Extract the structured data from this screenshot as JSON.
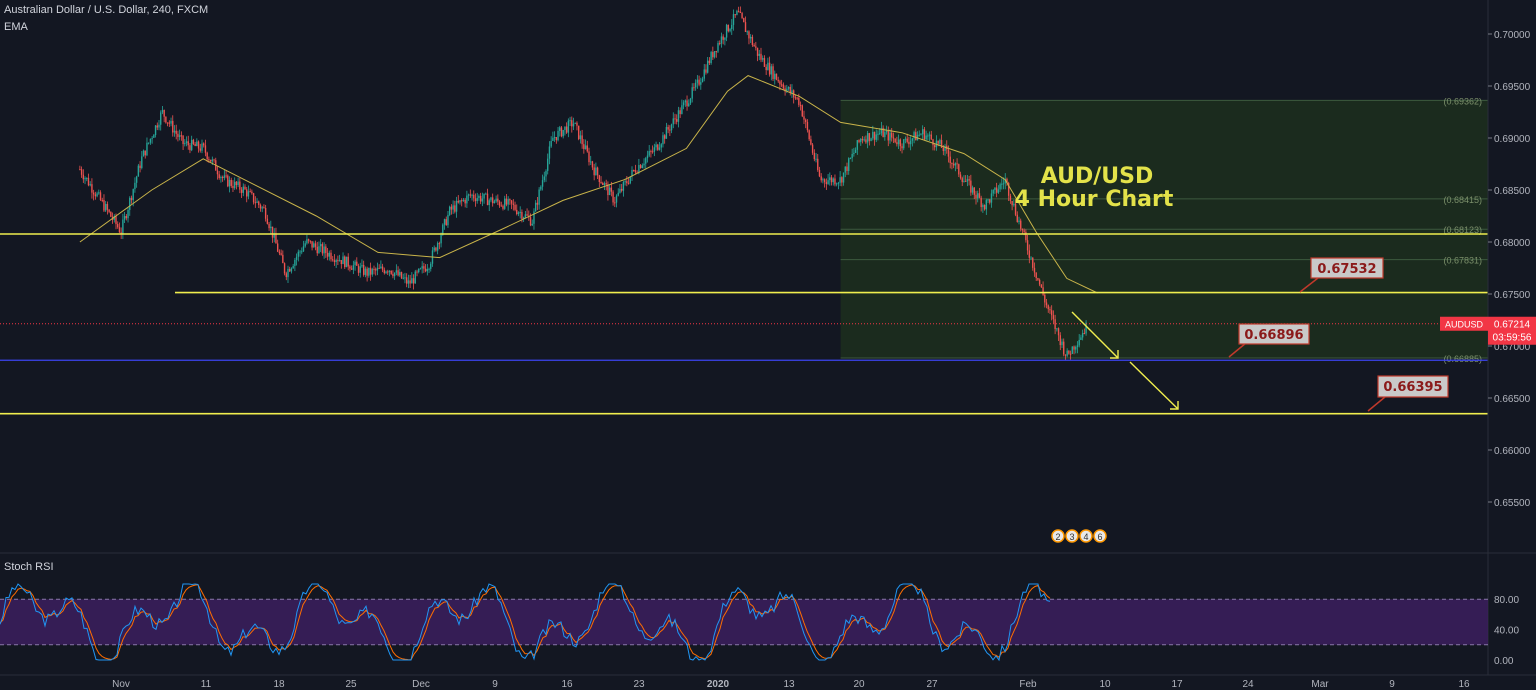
{
  "header": {
    "symbol_line": "Australian Dollar / U.S. Dollar, 240, FXCM",
    "indicator": "EMA"
  },
  "chart_data": {
    "type": "candlestick",
    "title": "AUD/USD",
    "subtitle": "4 Hour Chart",
    "ylim": [
      0.6455,
      0.7028
    ],
    "y_ticks": [
      0.7,
      0.695,
      0.69,
      0.685,
      0.68,
      0.675,
      0.67,
      0.665,
      0.66,
      0.655
    ],
    "y_tick_labels": [
      "0.70000",
      "0.69500",
      "0.69000",
      "0.68500",
      "0.68000",
      "0.67500",
      "0.67000",
      "0.66500",
      "0.66000",
      "0.65500"
    ],
    "x_tick_labels": [
      "Nov",
      "11",
      "18",
      "25",
      "Dec",
      "9",
      "16",
      "23",
      "2020",
      "13",
      "20",
      "27",
      "Feb",
      "10",
      "17",
      "24",
      "Mar",
      "9",
      "16"
    ],
    "close_path": [
      [
        "Oct 28",
        0.687
      ],
      [
        "Oct 30",
        0.684
      ],
      [
        "Nov 1",
        0.681
      ],
      [
        "Nov 3",
        0.688
      ],
      [
        "Nov 5",
        0.6925
      ],
      [
        "Nov 7",
        0.6895
      ],
      [
        "Nov 9",
        0.689
      ],
      [
        "Nov 11",
        0.686
      ],
      [
        "Nov 13",
        0.685
      ],
      [
        "Nov 15",
        0.683
      ],
      [
        "Nov 17",
        0.677
      ],
      [
        "Nov 19",
        0.68
      ],
      [
        "Nov 21",
        0.679
      ],
      [
        "Nov 23",
        0.678
      ],
      [
        "Nov 25",
        0.677
      ],
      [
        "Nov 27",
        0.6775
      ],
      [
        "Nov 29",
        0.676
      ],
      [
        "Dec 1",
        0.678
      ],
      [
        "Dec 3",
        0.683
      ],
      [
        "Dec 5",
        0.6845
      ],
      [
        "Dec 7",
        0.684
      ],
      [
        "Dec 9",
        0.6835
      ],
      [
        "Dec 11",
        0.682
      ],
      [
        "Dec 13",
        0.69
      ],
      [
        "Dec 15",
        0.6915
      ],
      [
        "Dec 17",
        0.687
      ],
      [
        "Dec 19",
        0.684
      ],
      [
        "Dec 21",
        0.687
      ],
      [
        "Dec 23",
        0.689
      ],
      [
        "Dec 25",
        0.692
      ],
      [
        "Dec 27",
        0.695
      ],
      [
        "Dec 29",
        0.699
      ],
      [
        "Dec 31",
        0.702
      ],
      [
        "Jan 2",
        0.698
      ],
      [
        "Jan 4",
        0.6955
      ],
      [
        "Jan 6",
        0.6935
      ],
      [
        "Jan 8",
        0.686
      ],
      [
        "Jan 10",
        0.686
      ],
      [
        "Jan 12",
        0.69
      ],
      [
        "Jan 14",
        0.6905
      ],
      [
        "Jan 16",
        0.6895
      ],
      [
        "Jan 18",
        0.6905
      ],
      [
        "Jan 20",
        0.689
      ],
      [
        "Jan 22",
        0.686
      ],
      [
        "Jan 24",
        0.6835
      ],
      [
        "Jan 26",
        0.686
      ],
      [
        "Jan 28",
        0.68
      ],
      [
        "Jan 30",
        0.674
      ],
      [
        "Feb 1",
        0.669
      ],
      [
        "Feb 3",
        0.672
      ]
    ],
    "ema_path": [
      [
        "Oct 28",
        0.68
      ],
      [
        "Nov 4",
        0.685
      ],
      [
        "Nov 9",
        0.688
      ],
      [
        "Nov 14",
        0.6855
      ],
      [
        "Nov 20",
        0.6825
      ],
      [
        "Nov 26",
        0.679
      ],
      [
        "Dec 2",
        0.6785
      ],
      [
        "Dec 8",
        0.6812
      ],
      [
        "Dec 14",
        0.684
      ],
      [
        "Dec 20",
        0.686
      ],
      [
        "Dec 26",
        0.689
      ],
      [
        "Dec 30",
        0.6945
      ],
      [
        "Jan 1",
        0.696
      ],
      [
        "Jan 6",
        0.694
      ],
      [
        "Jan 10",
        0.6915
      ],
      [
        "Jan 16",
        0.6905
      ],
      [
        "Jan 22",
        0.6885
      ],
      [
        "Jan 26",
        0.686
      ],
      [
        "Jan 29",
        0.681
      ],
      [
        "Feb 1",
        0.6765
      ],
      [
        "Feb 4",
        0.6751
      ]
    ],
    "horizontal_levels": [
      {
        "value": 0.68077,
        "label": "0.68077",
        "color": "#f0ee4e"
      },
      {
        "value": 0.67514,
        "label": "0.67514",
        "color": "#f0ee4e"
      },
      {
        "value": 0.66863,
        "label": "0.66863",
        "color": "#3b44f0"
      },
      {
        "value": 0.66349,
        "label": "0.66349",
        "color": "#f0ee4e"
      }
    ],
    "current_price": {
      "symbol": "AUDUSD",
      "value": "0.67214",
      "countdown": "03:59:56",
      "color": "#f23645"
    },
    "fib_levels": [
      "(0.69362)",
      "(0.68415)",
      "(0.68123)",
      "(0.67831)",
      "(0.66885)"
    ],
    "fib_values": [
      0.69362,
      0.68415,
      0.68123,
      0.67831,
      0.66885
    ],
    "fib_box_range": {
      "from": "Jan 10",
      "to": "Mar 17",
      "top": 0.69362,
      "bottom": 0.66885
    },
    "annotations": [
      {
        "label": "0.67532"
      },
      {
        "label": "0.66896"
      },
      {
        "label": "0.66395"
      }
    ],
    "event_markers": [
      "2",
      "3",
      "4",
      "6"
    ],
    "stoch_rsi": {
      "label": "Stoch RSI",
      "y_tick_labels": [
        "80.00",
        "40.00",
        "0.00"
      ],
      "band": [
        20,
        80
      ]
    },
    "colors": {
      "up": "#26a69a",
      "down": "#ef5350",
      "ema": "#c9b44a",
      "level": "#f0ee4e",
      "support": "#3b44f0",
      "fib_fill": "#1b2b1e",
      "stoch_k": "#2196f3",
      "stoch_d": "#ff6d00",
      "stoch_band": "#3c1e5e"
    }
  }
}
